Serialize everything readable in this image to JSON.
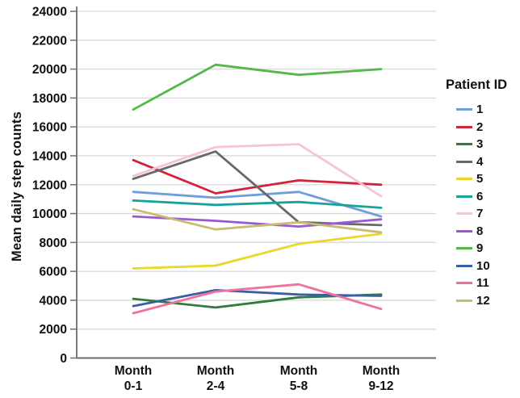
{
  "chart_data": {
    "type": "line",
    "title": "",
    "xlabel": "",
    "ylabel": "Mean daily step counts",
    "legend_title": "Patient ID",
    "legend_position": "right",
    "grid": true,
    "ylim": [
      0,
      24000
    ],
    "ytick_step": 2000,
    "yticks": [
      0,
      2000,
      4000,
      6000,
      8000,
      10000,
      12000,
      14000,
      16000,
      18000,
      20000,
      22000,
      24000
    ],
    "categories": [
      "Month 0-1",
      "Month 2-4",
      "Month 5-8",
      "Month 9-12"
    ],
    "category_labels": [
      [
        "Month",
        "0-1"
      ],
      [
        "Month",
        "2-4"
      ],
      [
        "Month",
        "5-8"
      ],
      [
        "Month",
        "9-12"
      ]
    ],
    "series": [
      {
        "name": "1",
        "color": "#6f9fd8",
        "values": [
          11500,
          11100,
          11500,
          9800
        ]
      },
      {
        "name": "2",
        "color": "#d6213a",
        "values": [
          13700,
          11400,
          12300,
          12000
        ]
      },
      {
        "name": "3",
        "color": "#2e7d3b",
        "values": [
          4100,
          3500,
          4200,
          4400
        ]
      },
      {
        "name": "4",
        "color": "#67696c",
        "values": [
          12400,
          14300,
          9400,
          9200
        ]
      },
      {
        "name": "5",
        "color": "#e8d82a",
        "values": [
          6200,
          6400,
          7900,
          8600
        ]
      },
      {
        "name": "6",
        "color": "#17a398",
        "values": [
          10900,
          10600,
          10800,
          10400
        ]
      },
      {
        "name": "7",
        "color": "#f6c3d8",
        "values": [
          12600,
          14600,
          14800,
          11200
        ]
      },
      {
        "name": "8",
        "color": "#9b59d0",
        "values": [
          9800,
          9500,
          9100,
          9600
        ]
      },
      {
        "name": "9",
        "color": "#54b948",
        "values": [
          17200,
          20300,
          19600,
          20000
        ]
      },
      {
        "name": "10",
        "color": "#3b5ea6",
        "values": [
          3600,
          4700,
          4400,
          4300
        ]
      },
      {
        "name": "11",
        "color": "#f0719e",
        "values": [
          3100,
          4600,
          5100,
          3400
        ]
      },
      {
        "name": "12",
        "color": "#c9bc72",
        "values": [
          10300,
          8900,
          9400,
          8700
        ]
      }
    ]
  },
  "style": {
    "gridline_color": "#d9d9d9",
    "axis_color": "#6e6e6e",
    "text_color": "#111111"
  }
}
